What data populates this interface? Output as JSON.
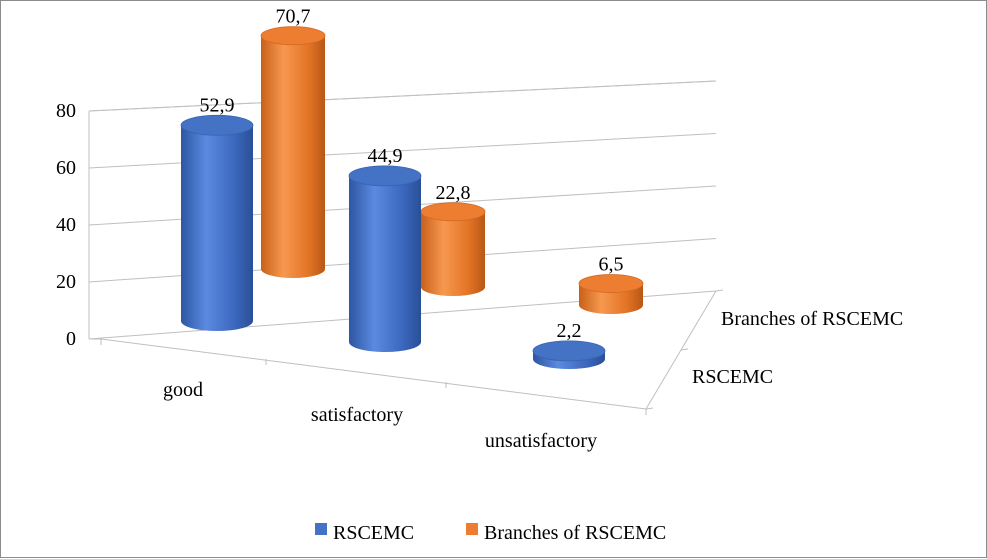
{
  "chart_data": {
    "type": "bar",
    "style": "3d-cylinder",
    "categories": [
      "good",
      "satisfactory",
      "unsatisfactory"
    ],
    "series": [
      {
        "name": "RSCEMC",
        "values": [
          52.9,
          44.9,
          2.2
        ],
        "labels": [
          "52,9",
          "44,9",
          "2,2"
        ],
        "color": "#4472c4"
      },
      {
        "name": "Branches of RSCEMC",
        "values": [
          70.7,
          22.8,
          6.5
        ],
        "labels": [
          "70,7",
          "22,8",
          "6,5"
        ],
        "color": "#ed7d31"
      }
    ],
    "depth_labels": [
      "RSCEMC",
      "Branches of RSCEMC"
    ],
    "yticks": [
      "0",
      "20",
      "40",
      "60",
      "80"
    ],
    "ylim": [
      0,
      80
    ],
    "grid": true,
    "legend": "bottom"
  }
}
